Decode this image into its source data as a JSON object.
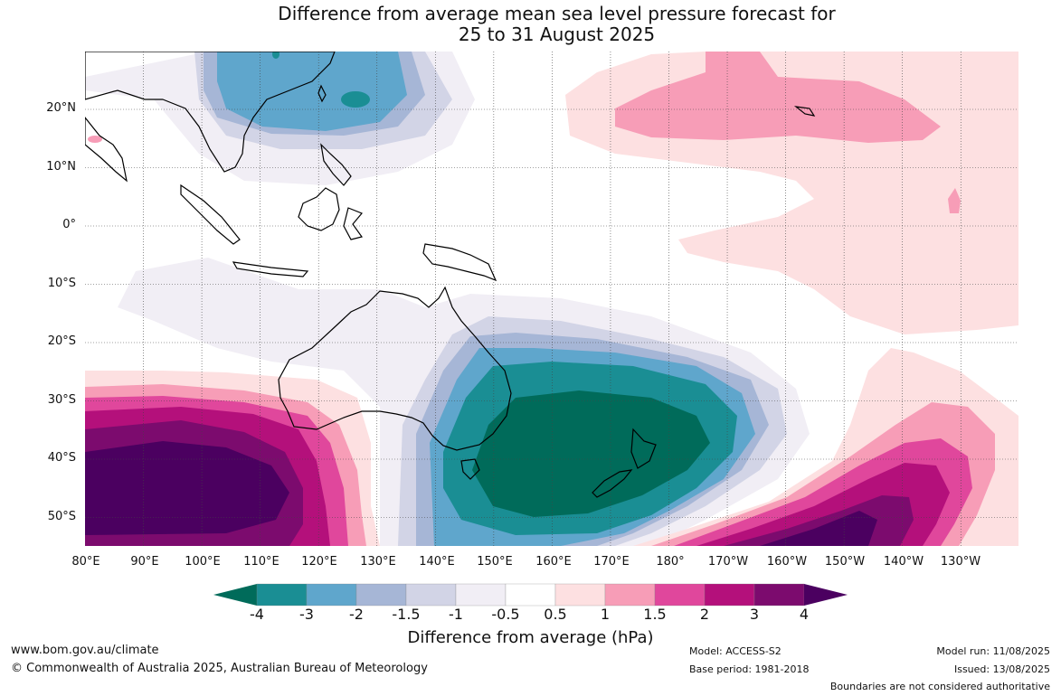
{
  "title_line1": "Difference from average mean sea level pressure forecast for",
  "title_line2": "25 to 31 August 2025",
  "lat_labels": [
    "20°N",
    "10°N",
    "0°",
    "10°S",
    "20°S",
    "30°S",
    "40°S",
    "50°S"
  ],
  "lon_labels": [
    "80°E",
    "90°E",
    "100°E",
    "110°E",
    "120°E",
    "130°E",
    "140°E",
    "150°E",
    "160°E",
    "170°E",
    "180°",
    "170°W",
    "160°W",
    "150°W",
    "140°W",
    "130°W"
  ],
  "legend": {
    "title": "Difference from average (hPa)",
    "ticks": [
      "-4",
      "-3",
      "-2",
      "-1.5",
      "-1",
      "-0.5",
      "0.5",
      "1",
      "1.5",
      "2",
      "3",
      "4"
    ],
    "colors": [
      "#006b5a",
      "#1a8e94",
      "#5fa6cc",
      "#a6b6d6",
      "#d2d4e6",
      "#f1eef5",
      "#ffffff",
      "#fde0e1",
      "#f79db7",
      "#e0479c",
      "#b4107b",
      "#7c0b6e",
      "#4b0060"
    ]
  },
  "footer": {
    "website": "www.bom.gov.au/climate",
    "copyright": "© Commonwealth of Australia 2025, Australian Bureau of Meteorology",
    "model": "Model: ACCESS-S2",
    "base_period": "Base period: 1981-2018",
    "model_run": "Model run: 11/08/2025",
    "issued": "Issued: 13/08/2025",
    "disclaimer": "Boundaries are not considered authoritative"
  }
}
